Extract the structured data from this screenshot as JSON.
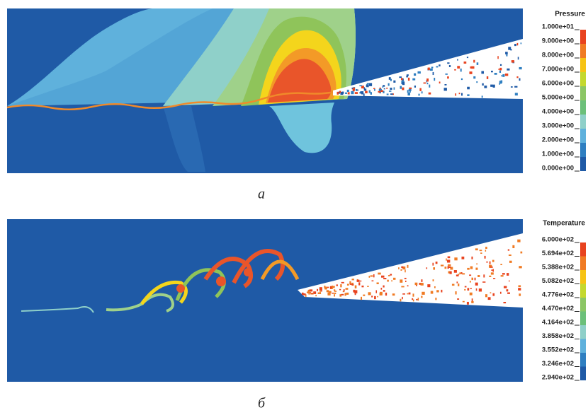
{
  "figure": {
    "panels": [
      {
        "colorbar_title": "Pressure",
        "colorbar_labels": [
          "1.000e+01",
          "9.000e+00",
          "8.000e+00",
          "7.000e+00",
          "6.000e+00",
          "5.000e+00",
          "4.000e+00",
          "3.000e+00",
          "2.000e+00",
          "1.000e+00",
          "0.000e+00"
        ],
        "caption": "a"
      },
      {
        "colorbar_title": "Temperature",
        "colorbar_labels": [
          "6.000e+02",
          "5.694e+02",
          "5.388e+02",
          "5.082e+02",
          "4.776e+02",
          "4.470e+02",
          "4.164e+02",
          "3.858e+02",
          "3.552e+02",
          "3.246e+02",
          "2.940e+02"
        ],
        "caption": "б"
      }
    ]
  }
}
